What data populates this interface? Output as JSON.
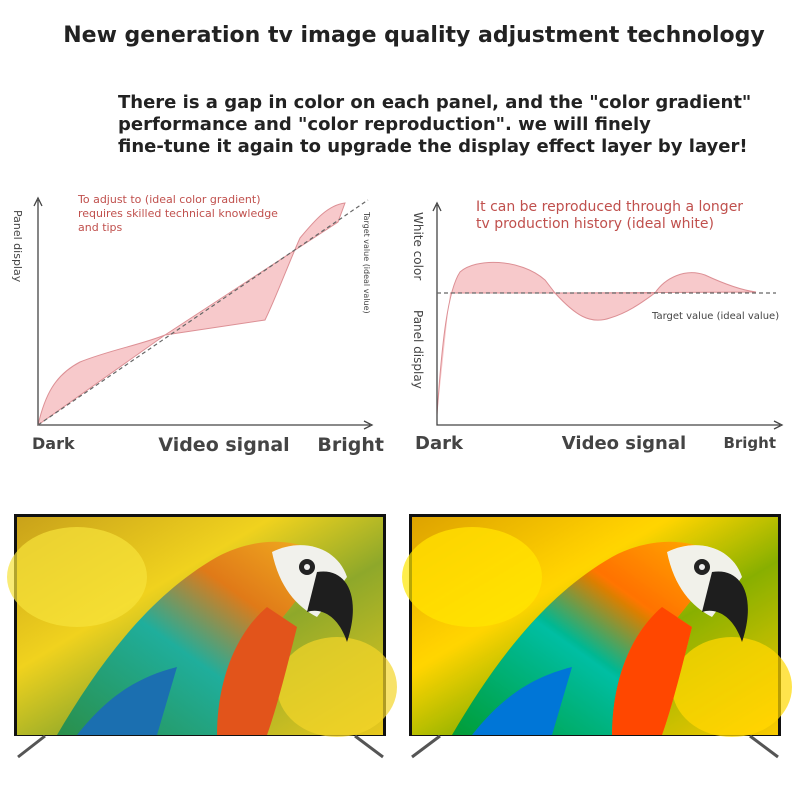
{
  "header": {
    "title": "New generation tv image quality adjustment technology",
    "description": [
      "There is a gap in color on each panel, and the \"color gradient\"",
      "performance and \"color reproduction\". we will finely",
      "fine-tune it again to upgrade the display effect layer by layer!"
    ]
  },
  "diagrams": [
    {
      "annotation": [
        "To adjust to (ideal color gradient)",
        "requires skilled technical knowledge",
        "and tips"
      ],
      "y_labels": [
        "Panel display"
      ],
      "target_label": "Target value (ideal value)",
      "x_labels": {
        "start": "Dark",
        "middle": "Video signal",
        "end": "Bright"
      }
    },
    {
      "annotation": [
        "It can be reproduced through a longer",
        "tv production history (ideal white)"
      ],
      "y_labels": [
        "White color",
        "Panel display"
      ],
      "target_label": "Target value (ideal value)",
      "x_labels": {
        "start": "Dark",
        "middle": "Video signal",
        "end": "Bright"
      }
    }
  ]
}
